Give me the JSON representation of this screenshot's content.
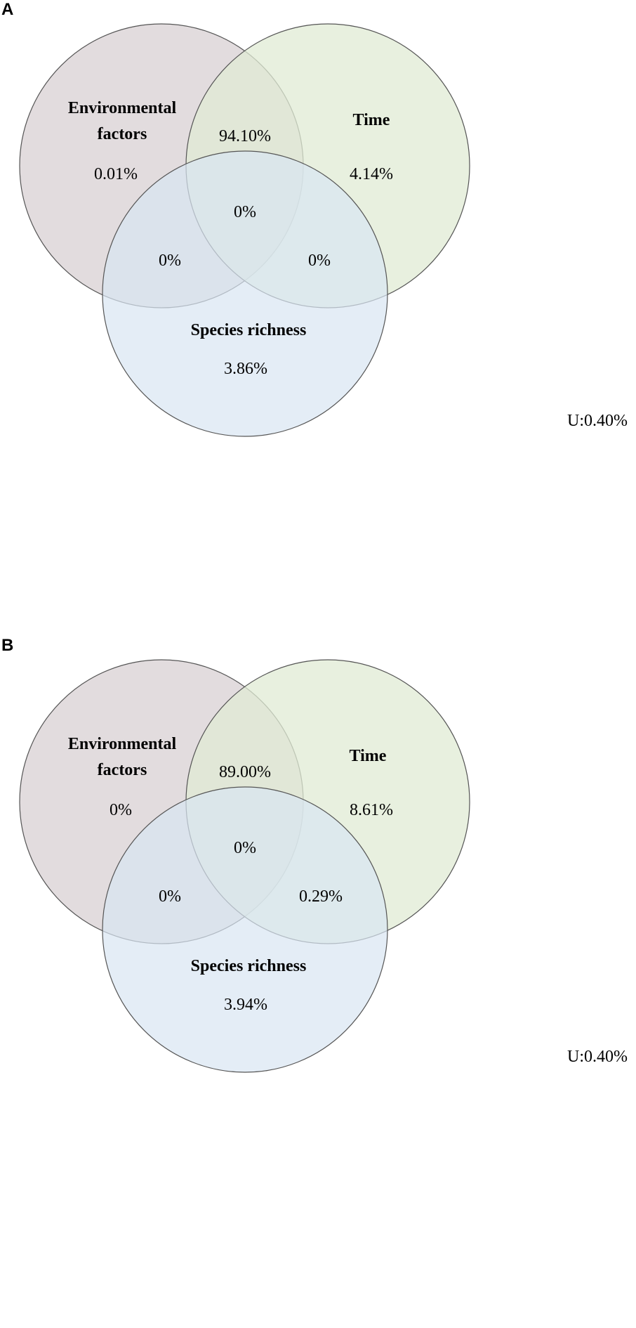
{
  "colors": {
    "environmental": "#ddd6d8",
    "time": "#e0ebd4",
    "species": "#d9e6f2",
    "outline": "#555555"
  },
  "panels": [
    {
      "letter": "A",
      "labels": {
        "environmental_line1": "Environmental",
        "environmental_line2": "factors",
        "time": "Time",
        "species": "Species richness"
      },
      "values": {
        "env_only": "0.01%",
        "env_time": "94.10%",
        "time_only": "4.14%",
        "all_three": "0%",
        "env_species": "0%",
        "time_species": "0%",
        "species_only": "3.86%"
      },
      "unexplained": "U:0.40%"
    },
    {
      "letter": "B",
      "labels": {
        "environmental_line1": "Environmental",
        "environmental_line2": "factors",
        "time": "Time",
        "species": "Species richness"
      },
      "values": {
        "env_only": "0%",
        "env_time": "89.00%",
        "time_only": "8.61%",
        "all_three": "0%",
        "env_species": "0%",
        "time_species": "0.29%",
        "species_only": "3.94%"
      },
      "unexplained": "U:0.40%"
    }
  ]
}
